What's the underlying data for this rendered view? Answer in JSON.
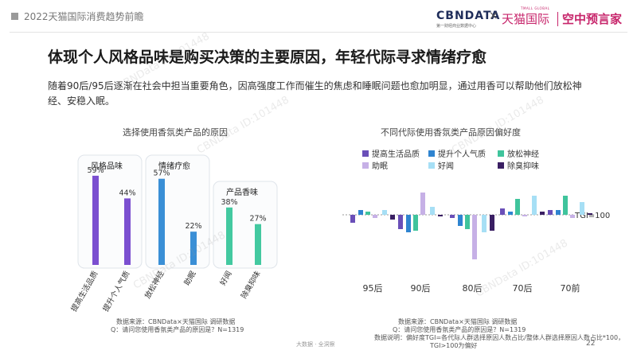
{
  "header": {
    "report_title": "2022天猫国际消费趋势前瞻",
    "brand_cbn": "CBNDATA",
    "brand_cbn_sub": "第一财经商业数据中心",
    "brand_x": "×",
    "brand_tmall_small": "TMALL GLOBAL",
    "brand_tmall": "天猫国际",
    "brand_kz": "空中预言家"
  },
  "main": {
    "title": "体现个人风格品味是购买决策的主要原因，年轻代际寻求情绪疗愈",
    "description": "随着90后/95后逐渐在社会中担当重要角色，因高强度工作而催生的焦虑和睡眠问题也愈加明显，通过用香可以帮助他们放松神经、安稳入眠。"
  },
  "left_panel": {
    "title": "选择使用香氛类产品的原因",
    "source": "数据来源：CBNData×天猫国际 调研数据",
    "question": "Q：请问您使用香氛类产品的原因是？N=1319"
  },
  "right_panel": {
    "title": "不同代际使用香氛类产品原因偏好度",
    "source": "数据来源：CBNData×天猫国际 调研数据",
    "question": "Q：请问您使用香氛类产品的原因是？N=1319",
    "note_line1": "数据说明：偏好度TGI=各代际人群选择原因人数占比/整体人群选择原因人数占比*100，",
    "note_line2": "TGI>100为偏好",
    "tgi_label": "TGI=100"
  },
  "footer": {
    "bottom_source": "大数据 · 全洞察",
    "page_number": "22"
  },
  "watermark_text": "CBNData ID:101448",
  "chart_data": [
    {
      "type": "bar",
      "title": "选择使用香氛类产品的原因",
      "groups": [
        {
          "name": "风格品味",
          "color": "#7b4fd0",
          "categories": [
            "提高生活品质",
            "提升个人气质"
          ],
          "values": [
            59,
            44
          ]
        },
        {
          "name": "情绪疗愈",
          "color": "#3a8fd6",
          "categories": [
            "放松神经",
            "助眠"
          ],
          "values": [
            57,
            22
          ]
        },
        {
          "name": "产品香味",
          "color": "#43c9a0",
          "categories": [
            "好闻",
            "除臭抑味"
          ],
          "values": [
            38,
            27
          ]
        }
      ],
      "value_suffix": "%"
    },
    {
      "type": "bar",
      "title": "不同代际使用香氛类产品原因偏好度",
      "baseline": 100,
      "baseline_label": "TGI=100",
      "categories": [
        "95后",
        "90后",
        "80后",
        "70后",
        "70前"
      ],
      "legend_position": "top",
      "series": [
        {
          "name": "提高生活品质",
          "color": "#6a4fb8",
          "values": [
            95,
            91,
            98,
            104,
            103
          ]
        },
        {
          "name": "提升个人气质",
          "color": "#2f84d0",
          "values": [
            103,
            89,
            93,
            102,
            103
          ]
        },
        {
          "name": "放松神经",
          "color": "#3fc49c",
          "values": [
            102,
            90,
            91,
            110,
            112
          ]
        },
        {
          "name": "助眠",
          "color": "#c6b0e6",
          "values": [
            98,
            114,
            72,
            99,
            98
          ]
        },
        {
          "name": "好闻",
          "color": "#a6dff5",
          "values": [
            103,
            105,
            89,
            112,
            108
          ]
        },
        {
          "name": "除臭抑味",
          "color": "#3a1f63",
          "values": [
            97,
            99,
            90,
            102,
            101
          ]
        }
      ]
    }
  ]
}
